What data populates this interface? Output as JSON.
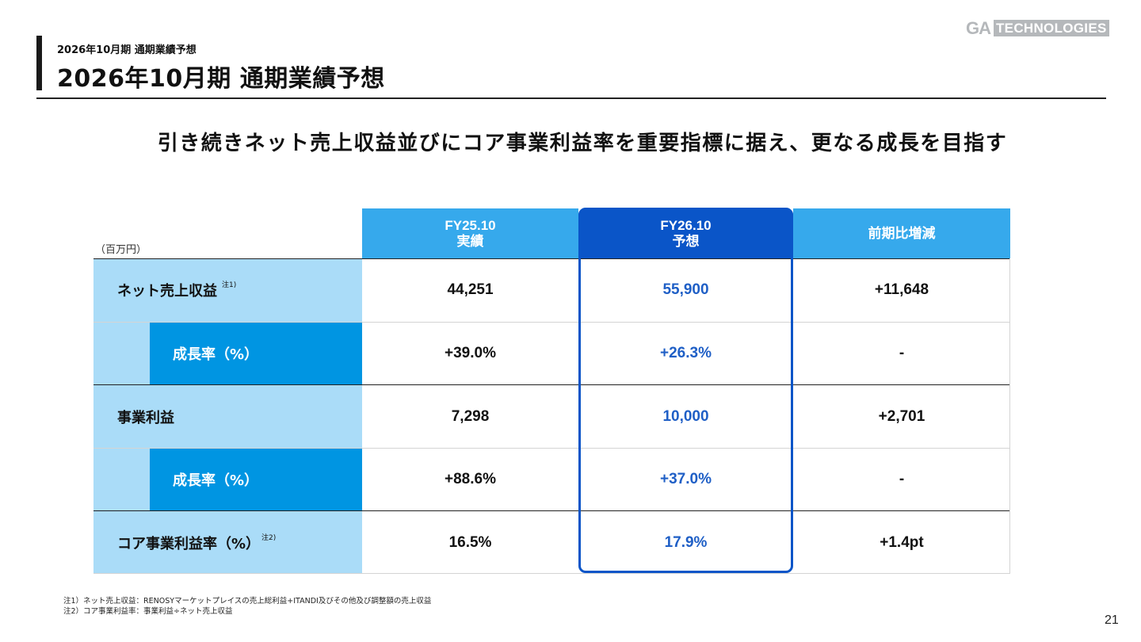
{
  "header": {
    "breadcrumb": "2026年10月期 通期業績予想",
    "title": "2026年10月期 通期業績予想",
    "logo_ga": "GA",
    "logo_technologies": "TECHNOLOGIES"
  },
  "subtitle": "引き続きネット売上収益並びにコア事業利益率を重要指標に据え、更なる成長を目指す",
  "table": {
    "unit": "（百万円）",
    "columns": [
      {
        "line1": "FY25.10",
        "line2": "実績"
      },
      {
        "line1": "FY26.10",
        "line2": "予想"
      },
      {
        "line1": "前期比増減",
        "line2": ""
      }
    ],
    "rows": [
      {
        "label": "ネット売上収益",
        "note": "注1)",
        "values": [
          "44,251",
          "55,900",
          "+11,648"
        ]
      },
      {
        "label": "成長率（%）",
        "note": "",
        "values": [
          "+39.0%",
          "+26.3%",
          "-"
        ]
      },
      {
        "label": "事業利益",
        "note": "",
        "values": [
          "7,298",
          "10,000",
          "+2,701"
        ]
      },
      {
        "label": "成長率（%）",
        "note": "",
        "values": [
          "+88.6%",
          "+37.0%",
          "-"
        ]
      },
      {
        "label": "コア事業利益率（%）",
        "note": "注2)",
        "values": [
          "16.5%",
          "17.9%",
          "+1.4pt"
        ]
      }
    ]
  },
  "footnotes": [
    "注1）ネット売上収益：RENOSYマーケットプレイスの売上総利益+ITANDI及びその他及び調整額の売上収益",
    "注2）コア事業利益率：事業利益÷ネット売上収益"
  ],
  "page_number": "21",
  "colors": {
    "header_light_blue": "#36a9ec",
    "header_dark_blue": "#0a55c8",
    "row_label_bg": "#aadcf8",
    "sub_label_bg": "#0095e2",
    "forecast_text": "#1f5fc6"
  }
}
